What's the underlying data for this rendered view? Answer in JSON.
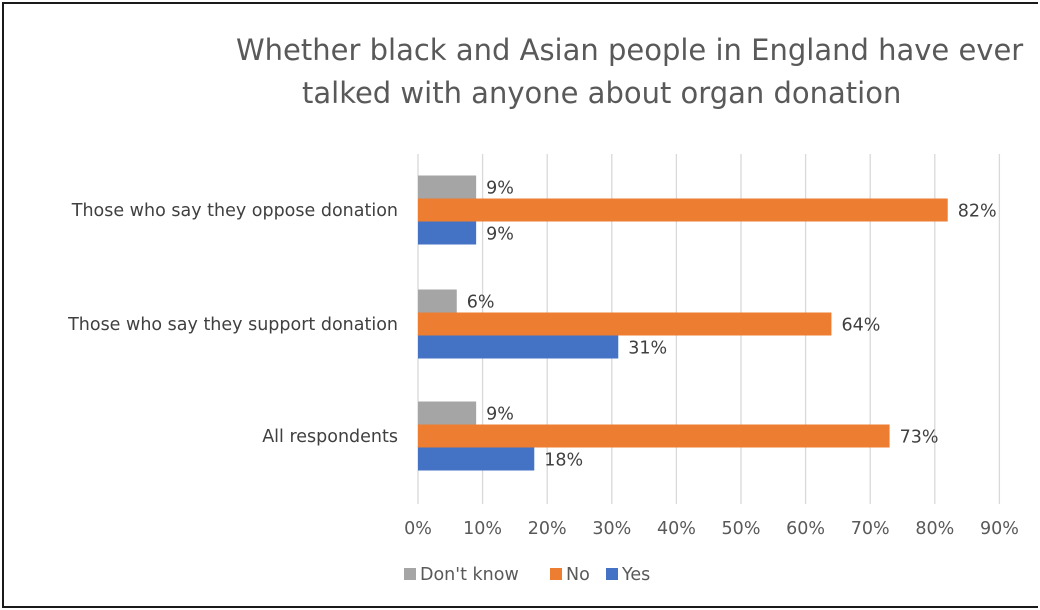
{
  "chart_data": {
    "type": "bar",
    "orientation": "horizontal",
    "title": "Whether black and Asian people in England have ever talked with anyone about organ donation",
    "title_lines": [
      "Whether black and Asian people in England have ever",
      "talked with anyone about organ donation"
    ],
    "categories": [
      "Those who say they oppose donation",
      "Those who say they support donation",
      "All respondents"
    ],
    "series": [
      {
        "name": "Don't know",
        "color": "#a5a5a5",
        "values": [
          9,
          6,
          9
        ]
      },
      {
        "name": "No",
        "color": "#ed7d31",
        "values": [
          82,
          64,
          73
        ]
      },
      {
        "name": "Yes",
        "color": "#4472c4",
        "values": [
          9,
          31,
          18
        ]
      }
    ],
    "data_labels": [
      [
        "9%",
        "6%",
        "9%"
      ],
      [
        "82%",
        "64%",
        "73%"
      ],
      [
        "9%",
        "31%",
        "18%"
      ]
    ],
    "x_ticks": [
      "0%",
      "10%",
      "20%",
      "30%",
      "40%",
      "50%",
      "60%",
      "70%",
      "80%",
      "90%"
    ],
    "xlim": [
      0,
      90
    ],
    "xlabel": "",
    "ylabel": "",
    "grid": "vertical",
    "legend_position": "bottom",
    "legend": [
      "Don't know",
      "No",
      "Yes"
    ],
    "gridline_color": "#d9d9d9"
  }
}
